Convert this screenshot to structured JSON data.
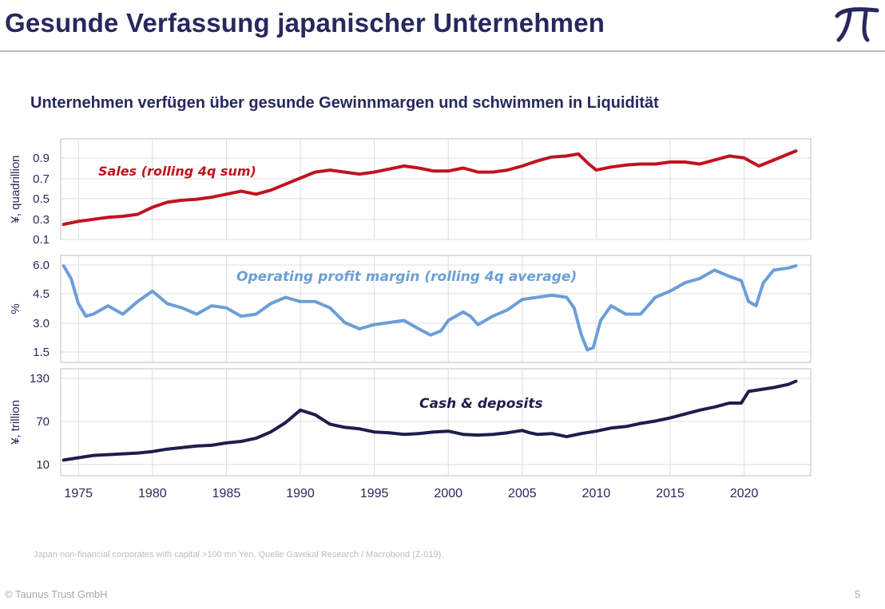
{
  "header": {
    "title": "Gesunde Verfassung japanischer Unternehmen",
    "logo_text": "TT"
  },
  "subtitle": "Unternehmen verfügen über gesunde Gewinnmargen und schwimmen in Liquidität",
  "source": "Japan non-financial corporates with capital >100 mn Yen. Quelle Gavekal Research / Macrobond (Z-019).",
  "footer": {
    "copyright": "© Taunus Trust GmbH",
    "page": "5"
  },
  "colors": {
    "title": "#27285d",
    "sales": "#c0141f",
    "margin": "#6b9fd6",
    "cash": "#1d1d4e",
    "grid": "#dcdcdc"
  },
  "chart_data": [
    {
      "type": "line",
      "ylabel": "¥, quadrillion",
      "ylim": [
        0.05,
        1.05
      ],
      "yticks": [
        "0.9",
        "0.7",
        "0.5",
        "0.3",
        "0.1"
      ],
      "series": [
        {
          "name": "Sales (rolling 4q sum)",
          "color": "#c0141f",
          "x": [
            1974,
            1975,
            1976,
            1977,
            1978,
            1979,
            1980,
            1981,
            1982,
            1983,
            1984,
            1985,
            1986,
            1987,
            1988,
            1989,
            1990,
            1991,
            1992,
            1993,
            1994,
            1995,
            1996,
            1997,
            1998,
            1999,
            2000,
            2001,
            2002,
            2003,
            2004,
            2005,
            2006,
            2007,
            2008,
            2008.8,
            2009.5,
            2010,
            2011,
            2012,
            2013,
            2014,
            2015,
            2016,
            2017,
            2018,
            2019,
            2020,
            2020.5,
            2021,
            2022,
            2023,
            2023.5
          ],
          "values": [
            0.2,
            0.23,
            0.25,
            0.27,
            0.28,
            0.3,
            0.37,
            0.42,
            0.44,
            0.45,
            0.47,
            0.5,
            0.53,
            0.5,
            0.54,
            0.6,
            0.66,
            0.72,
            0.74,
            0.72,
            0.7,
            0.72,
            0.75,
            0.78,
            0.76,
            0.73,
            0.73,
            0.76,
            0.72,
            0.72,
            0.74,
            0.78,
            0.83,
            0.87,
            0.88,
            0.9,
            0.8,
            0.74,
            0.77,
            0.79,
            0.8,
            0.8,
            0.82,
            0.82,
            0.8,
            0.84,
            0.88,
            0.86,
            0.82,
            0.78,
            0.84,
            0.9,
            0.93
          ]
        }
      ]
    },
    {
      "type": "line",
      "ylabel": "%",
      "ylim": [
        1.2,
        6.3
      ],
      "yticks": [
        "6.0",
        "4.5",
        "3.0",
        "1.5"
      ],
      "series": [
        {
          "name": "Operating profit margin (rolling 4q average)",
          "color": "#6b9fd6",
          "x": [
            1974,
            1974.5,
            1975,
            1975.5,
            1976,
            1977,
            1978,
            1979,
            1980,
            1981,
            1982,
            1983,
            1984,
            1985,
            1986,
            1987,
            1988,
            1989,
            1990,
            1991,
            1992,
            1993,
            1994,
            1995,
            1996,
            1997,
            1998,
            1998.8,
            1999.5,
            2000,
            2001,
            2001.5,
            2002,
            2003,
            2004,
            2005,
            2006,
            2007,
            2008,
            2008.5,
            2009,
            2009.4,
            2009.8,
            2010.3,
            2011,
            2012,
            2013,
            2014,
            2015,
            2016,
            2017,
            2018,
            2019,
            2019.8,
            2020.3,
            2020.8,
            2021.3,
            2022,
            2023,
            2023.5
          ],
          "values": [
            5.8,
            5.2,
            4.0,
            3.4,
            3.5,
            3.9,
            3.5,
            4.1,
            4.6,
            4.0,
            3.8,
            3.5,
            3.9,
            3.8,
            3.4,
            3.5,
            4.0,
            4.3,
            4.1,
            4.1,
            3.8,
            3.1,
            2.8,
            3.0,
            3.1,
            3.2,
            2.8,
            2.5,
            2.7,
            3.2,
            3.6,
            3.4,
            3.0,
            3.4,
            3.7,
            4.2,
            4.3,
            4.4,
            4.3,
            3.8,
            2.5,
            1.8,
            1.9,
            3.2,
            3.9,
            3.5,
            3.5,
            4.3,
            4.6,
            5.0,
            5.2,
            5.6,
            5.3,
            5.1,
            4.1,
            3.9,
            5.0,
            5.6,
            5.7,
            5.8
          ]
        }
      ]
    },
    {
      "type": "line",
      "ylabel": "¥, trillion",
      "ylim": [
        0,
        137
      ],
      "yticks": [
        "130",
        "70",
        "10"
      ],
      "series": [
        {
          "name": "Cash & deposits",
          "color": "#1d1d4e",
          "x": [
            1974,
            1975,
            1976,
            1977,
            1978,
            1979,
            1980,
            1981,
            1982,
            1983,
            1984,
            1985,
            1986,
            1987,
            1988,
            1989,
            1990,
            1991,
            1992,
            1993,
            1994,
            1995,
            1996,
            1997,
            1998,
            1999,
            2000,
            2001,
            2002,
            2003,
            2004,
            2005,
            2005.5,
            2006,
            2007,
            2008,
            2009,
            2010,
            2011,
            2012,
            2013,
            2014,
            2015,
            2016,
            2017,
            2018,
            2019,
            2019.8,
            2020.3,
            2021,
            2022,
            2023,
            2023.5
          ],
          "values": [
            20,
            23,
            26,
            27,
            28,
            29,
            31,
            34,
            36,
            38,
            39,
            42,
            44,
            48,
            56,
            68,
            84,
            78,
            66,
            62,
            60,
            56,
            55,
            53,
            54,
            56,
            57,
            53,
            52,
            53,
            55,
            58,
            55,
            53,
            54,
            50,
            54,
            57,
            61,
            63,
            67,
            70,
            74,
            79,
            84,
            88,
            93,
            93,
            108,
            110,
            113,
            117,
            121
          ]
        }
      ]
    }
  ],
  "x_axis": {
    "min": 1973.8,
    "max": 2024.5,
    "ticks": [
      "1975",
      "1980",
      "1985",
      "1990",
      "1995",
      "2000",
      "2005",
      "2010",
      "2015",
      "2020"
    ]
  }
}
